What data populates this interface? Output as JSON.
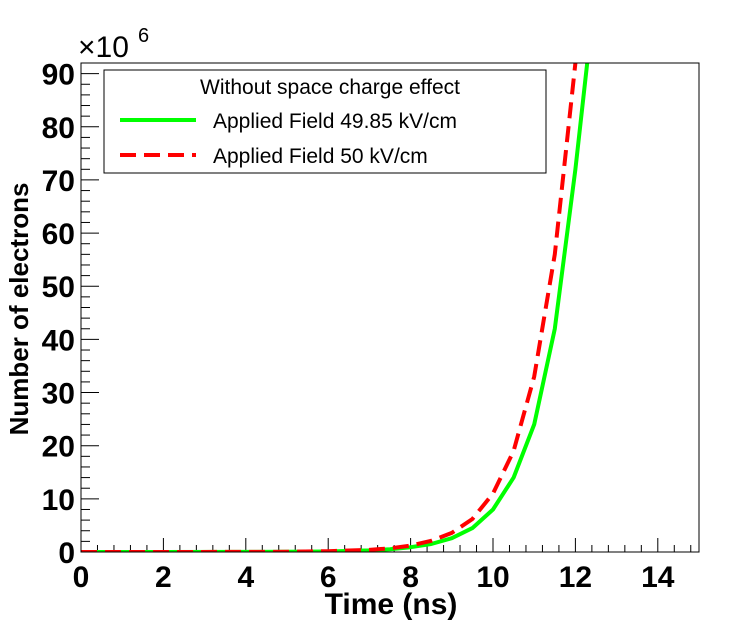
{
  "chart_data": {
    "type": "line",
    "title": "",
    "xlabel": "Time (ns)",
    "ylabel": "Number of electrons",
    "xlim": [
      0,
      15
    ],
    "ylim": [
      0,
      92
    ],
    "y_multiplier_label": "×10",
    "y_multiplier_exponent": "6",
    "x_ticks": [
      0,
      2,
      4,
      6,
      8,
      10,
      12,
      14
    ],
    "y_ticks": [
      0,
      10,
      20,
      30,
      40,
      50,
      60,
      70,
      80,
      90
    ],
    "legend": {
      "header": "Without space charge effect",
      "position": "top-left"
    },
    "series": [
      {
        "name": "Applied Field 49.85 kV/cm",
        "color": "#00ff00",
        "style": "solid",
        "x": [
          0,
          2,
          4,
          5,
          6,
          7,
          7.5,
          8,
          8.5,
          9,
          9.5,
          10,
          10.5,
          11,
          11.5,
          12,
          12.3
        ],
        "y": [
          0,
          0,
          0.01,
          0.03,
          0.1,
          0.3,
          0.5,
          0.9,
          1.5,
          2.6,
          4.5,
          8,
          14,
          24,
          42,
          72,
          93
        ]
      },
      {
        "name": "Applied Field 50 kV/cm",
        "color": "#ff0000",
        "style": "dashed",
        "x": [
          0,
          2,
          4,
          5,
          6,
          7,
          7.5,
          8,
          8.5,
          9,
          9.5,
          10,
          10.5,
          11,
          11.5,
          12
        ],
        "y": [
          0,
          0,
          0.01,
          0.04,
          0.15,
          0.4,
          0.7,
          1.2,
          2.1,
          3.6,
          6.2,
          11,
          19,
          33,
          56,
          92
        ]
      }
    ]
  }
}
